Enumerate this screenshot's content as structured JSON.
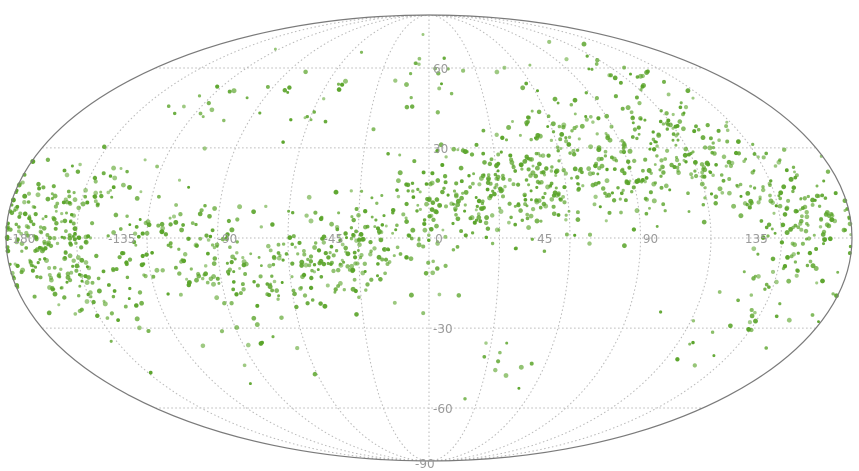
{
  "chart_data": {
    "type": "scatter",
    "projection": "mollweide",
    "title": "",
    "xlabel": "",
    "ylabel": "",
    "grid": true,
    "legend": "none",
    "colors": {
      "points": "#5aa42a",
      "grid": "#b8b8b8",
      "outline": "#7a7a7a",
      "labels": "#9a9a9a"
    },
    "longitude_ticks": [
      {
        "value": -180,
        "label": "-180"
      },
      {
        "value": -135,
        "label": "-135"
      },
      {
        "value": -90,
        "label": "-90"
      },
      {
        "value": -45,
        "label": "-45"
      },
      {
        "value": 0,
        "label": "0"
      },
      {
        "value": 45,
        "label": "45"
      },
      {
        "value": 90,
        "label": "90"
      },
      {
        "value": 135,
        "label": "135"
      }
    ],
    "latitude_ticks": [
      {
        "value": 60,
        "label": "60"
      },
      {
        "value": 30,
        "label": "30"
      },
      {
        "value": -30,
        "label": "-30"
      },
      {
        "value": -60,
        "label": "-60"
      },
      {
        "value": -90,
        "label": "-90"
      }
    ],
    "clusters": [
      {
        "lon": -165,
        "lat": 8,
        "count": 90
      },
      {
        "lon": -160,
        "lat": -8,
        "count": 110
      },
      {
        "lon": -150,
        "lat": 14,
        "count": 45
      },
      {
        "lon": -150,
        "lat": -20,
        "count": 45
      },
      {
        "lon": -115,
        "lat": 3,
        "count": 55
      },
      {
        "lon": -90,
        "lat": -8,
        "count": 55
      },
      {
        "lon": -70,
        "lat": -10,
        "count": 70
      },
      {
        "lon": -45,
        "lat": -10,
        "count": 75
      },
      {
        "lon": -25,
        "lat": -2,
        "count": 70
      },
      {
        "lon": -8,
        "lat": 4,
        "count": 60
      },
      {
        "lon": 8,
        "lat": 20,
        "count": 55
      },
      {
        "lon": 25,
        "lat": 10,
        "count": 75
      },
      {
        "lon": 42,
        "lat": 22,
        "count": 90
      },
      {
        "lon": 60,
        "lat": 38,
        "count": 55
      },
      {
        "lon": 68,
        "lat": 18,
        "count": 80
      },
      {
        "lon": 95,
        "lat": 22,
        "count": 65
      },
      {
        "lon": 110,
        "lat": 35,
        "count": 55
      },
      {
        "lon": 130,
        "lat": 25,
        "count": 90
      },
      {
        "lon": 150,
        "lat": 12,
        "count": 85
      },
      {
        "lon": 165,
        "lat": 3,
        "count": 55
      },
      {
        "lon": 155,
        "lat": -15,
        "count": 30
      },
      {
        "lon": -120,
        "lat": 45,
        "count": 15
      },
      {
        "lon": -60,
        "lat": 48,
        "count": 20
      },
      {
        "lon": 5,
        "lat": 55,
        "count": 20
      },
      {
        "lon": 120,
        "lat": 55,
        "count": 30
      },
      {
        "lon": 35,
        "lat": -40,
        "count": 12
      },
      {
        "lon": -90,
        "lat": -35,
        "count": 12
      },
      {
        "lon": 140,
        "lat": -30,
        "count": 15
      }
    ]
  }
}
